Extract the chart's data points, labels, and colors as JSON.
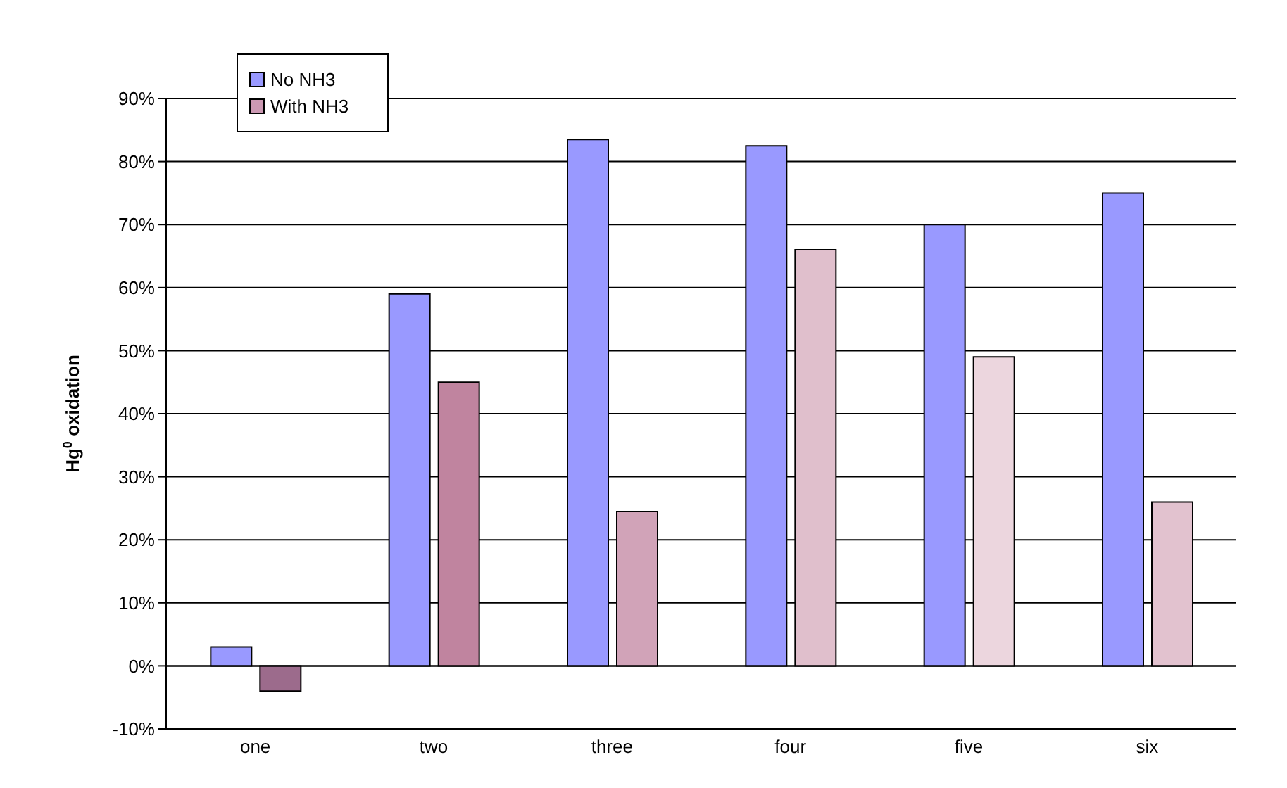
{
  "chart_data": {
    "type": "bar",
    "ylabel": "Hg$^{0}$ oxidation",
    "categories": [
      "one",
      "two",
      "three",
      "four",
      "five",
      "six"
    ],
    "series": [
      {
        "name": "No NH3",
        "color": "#9999ff",
        "values": [
          3,
          59,
          83.5,
          82.5,
          70,
          75
        ]
      },
      {
        "name": "With NH3",
        "color": "#cc99b3",
        "colors": [
          "#9c6b8c",
          "#c0849f",
          "#d1a3b8",
          "#e0bfcc",
          "#ecd6de",
          "#e2c2cf"
        ],
        "values": [
          -4,
          45,
          24.5,
          66,
          49,
          26
        ]
      }
    ],
    "ylim": [
      -10,
      90
    ],
    "yticks": [
      {
        "value": -10,
        "label": "-10%"
      },
      {
        "value": 0,
        "label": "0%"
      },
      {
        "value": 10,
        "label": "10%"
      },
      {
        "value": 20,
        "label": "20%"
      },
      {
        "value": 30,
        "label": "30%"
      },
      {
        "value": 40,
        "label": "40%"
      },
      {
        "value": 50,
        "label": "50%"
      },
      {
        "value": 60,
        "label": "60%"
      },
      {
        "value": 70,
        "label": "70%"
      },
      {
        "value": 80,
        "label": "80%"
      },
      {
        "value": 90,
        "label": "90%"
      }
    ],
    "grid": "y",
    "legend": "top left"
  }
}
